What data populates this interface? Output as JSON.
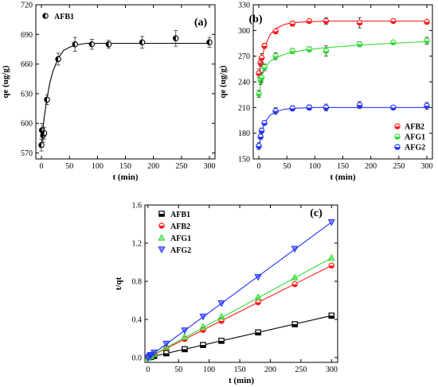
{
  "chart_data": [
    {
      "panel_label": "(a)",
      "type": "scatter",
      "xlabel": "t (min)",
      "ylabel": "qe (ug/g)",
      "xlim": [
        -10,
        310
      ],
      "ylim": [
        564,
        720
      ],
      "xticks": [
        "0",
        "50",
        "100",
        "150",
        "200",
        "250",
        "300"
      ],
      "yticks": [
        "570",
        "600",
        "630",
        "660",
        "690",
        "720"
      ],
      "legend_position": "top-left",
      "series": [
        {
          "name": "AFB1",
          "color": "#000000",
          "marker": "half-filled-circle",
          "x": [
            0,
            1,
            3,
            5,
            10,
            30,
            60,
            90,
            120,
            180,
            240,
            300
          ],
          "y": [
            578,
            593,
            588,
            590,
            624,
            665,
            680,
            680,
            680,
            682,
            686,
            682
          ],
          "error": [
            6,
            7,
            7,
            6,
            5,
            6,
            7,
            5,
            4,
            6,
            8,
            5
          ],
          "fit": [
            [
              0,
              575
            ],
            [
              2,
              590
            ],
            [
              5,
              606
            ],
            [
              10,
              626
            ],
            [
              15,
              641
            ],
            [
              20,
              652
            ],
            [
              30,
              666
            ],
            [
              40,
              674
            ],
            [
              50,
              677
            ],
            [
              60,
              679
            ],
            [
              80,
              681
            ],
            [
              100,
              681
            ],
            [
              150,
              681
            ],
            [
              200,
              681
            ],
            [
              250,
              681
            ],
            [
              300,
              681
            ]
          ]
        }
      ]
    },
    {
      "panel_label": "(b)",
      "type": "scatter",
      "xlabel": "t (min)",
      "ylabel": "qe (ug/g)",
      "xlim": [
        -10,
        310
      ],
      "ylim": [
        150,
        330
      ],
      "xticks": [
        "0",
        "50",
        "100",
        "150",
        "200",
        "250",
        "300"
      ],
      "yticks": [
        "150",
        "180",
        "210",
        "240",
        "270",
        "300",
        "330"
      ],
      "legend_position": "bottom-right",
      "series": [
        {
          "name": "AFB2",
          "color": "#ff1a1a",
          "x": [
            0,
            3,
            5,
            10,
            30,
            60,
            90,
            120,
            180,
            240,
            300
          ],
          "y": [
            250,
            262,
            268,
            282,
            299,
            308,
            311,
            311,
            309,
            311,
            310
          ],
          "error": [
            5,
            4,
            5,
            3,
            2,
            3,
            2,
            4,
            6,
            2,
            2
          ],
          "fit": [
            [
              0,
              243
            ],
            [
              5,
              265
            ],
            [
              10,
              280
            ],
            [
              20,
              295
            ],
            [
              30,
              302
            ],
            [
              45,
              307
            ],
            [
              60,
              309
            ],
            [
              80,
              310
            ],
            [
              120,
              311
            ],
            [
              200,
              311
            ],
            [
              300,
              311
            ]
          ]
        },
        {
          "name": "AFG1",
          "color": "#33dd33",
          "x": [
            0,
            3,
            5,
            10,
            30,
            60,
            90,
            120,
            180,
            240,
            300
          ],
          "y": [
            226,
            242,
            245,
            257,
            270,
            276,
            278,
            276,
            284,
            286,
            288
          ],
          "error": [
            4,
            5,
            6,
            4,
            4,
            3,
            3,
            6,
            3,
            2,
            4
          ],
          "fit": [
            [
              0,
              222
            ],
            [
              5,
              246
            ],
            [
              10,
              255
            ],
            [
              20,
              264
            ],
            [
              30,
              268
            ],
            [
              50,
              273
            ],
            [
              80,
              277
            ],
            [
              120,
              280
            ],
            [
              180,
              283
            ],
            [
              240,
              285
            ],
            [
              300,
              287
            ]
          ]
        },
        {
          "name": "AFG2",
          "color": "#2233ff",
          "x": [
            0,
            3,
            5,
            10,
            30,
            60,
            90,
            120,
            180,
            240,
            300
          ],
          "y": [
            165,
            176,
            183,
            192,
            206,
            209,
            210,
            210,
            213,
            210,
            212
          ],
          "error": [
            4,
            3,
            3,
            2,
            4,
            3,
            3,
            4,
            4,
            2,
            4
          ],
          "fit": [
            [
              0,
              162
            ],
            [
              5,
              182
            ],
            [
              10,
              192
            ],
            [
              20,
              201
            ],
            [
              30,
              205
            ],
            [
              45,
              208
            ],
            [
              60,
              209
            ],
            [
              100,
              210
            ],
            [
              200,
              210
            ],
            [
              300,
              210
            ]
          ]
        }
      ]
    },
    {
      "panel_label": "(c)",
      "type": "scatter",
      "xlabel": "t (min)",
      "ylabel": "t/qt",
      "xlim": [
        -5,
        310
      ],
      "ylim": [
        -0.05,
        1.6
      ],
      "xticks": [
        "0",
        "50",
        "100",
        "150",
        "200",
        "250",
        "300"
      ],
      "yticks": [
        "0.0",
        "0.4",
        "0.8",
        "1.2",
        "1.6"
      ],
      "legend_position": "top-left",
      "series": [
        {
          "name": "AFB1",
          "color": "#000000",
          "marker": "square",
          "x": [
            0,
            3,
            5,
            10,
            30,
            60,
            90,
            120,
            180,
            240,
            300
          ],
          "y": [
            0.0,
            0.005,
            0.008,
            0.016,
            0.045,
            0.088,
            0.132,
            0.176,
            0.264,
            0.35,
            0.44
          ],
          "fit": [
            [
              0,
              0.0
            ],
            [
              300,
              0.44
            ]
          ]
        },
        {
          "name": "AFB2",
          "color": "#ff1a1a",
          "marker": "circle",
          "x": [
            0,
            3,
            5,
            10,
            30,
            60,
            90,
            120,
            180,
            240,
            300
          ],
          "y": [
            0.0,
            0.012,
            0.019,
            0.035,
            0.1,
            0.195,
            0.29,
            0.385,
            0.58,
            0.77,
            0.965
          ],
          "fit": [
            [
              0,
              0.0
            ],
            [
              300,
              0.965
            ]
          ]
        },
        {
          "name": "AFG1",
          "color": "#33dd33",
          "marker": "triangle-up",
          "x": [
            0,
            3,
            5,
            10,
            30,
            60,
            90,
            120,
            180,
            240,
            300
          ],
          "y": [
            0.0,
            0.013,
            0.021,
            0.039,
            0.11,
            0.218,
            0.325,
            0.43,
            0.635,
            0.84,
            1.045
          ],
          "fit": [
            [
              0,
              0.0
            ],
            [
              300,
              1.045
            ]
          ]
        },
        {
          "name": "AFG2",
          "color": "#2233ff",
          "marker": "triangle-down",
          "x": [
            0,
            3,
            5,
            10,
            30,
            60,
            90,
            120,
            180,
            240,
            300
          ],
          "y": [
            0.0,
            0.018,
            0.028,
            0.052,
            0.145,
            0.285,
            0.43,
            0.57,
            0.845,
            1.14,
            1.42
          ],
          "fit": [
            [
              0,
              0.0
            ],
            [
              300,
              1.42
            ]
          ]
        }
      ]
    }
  ]
}
